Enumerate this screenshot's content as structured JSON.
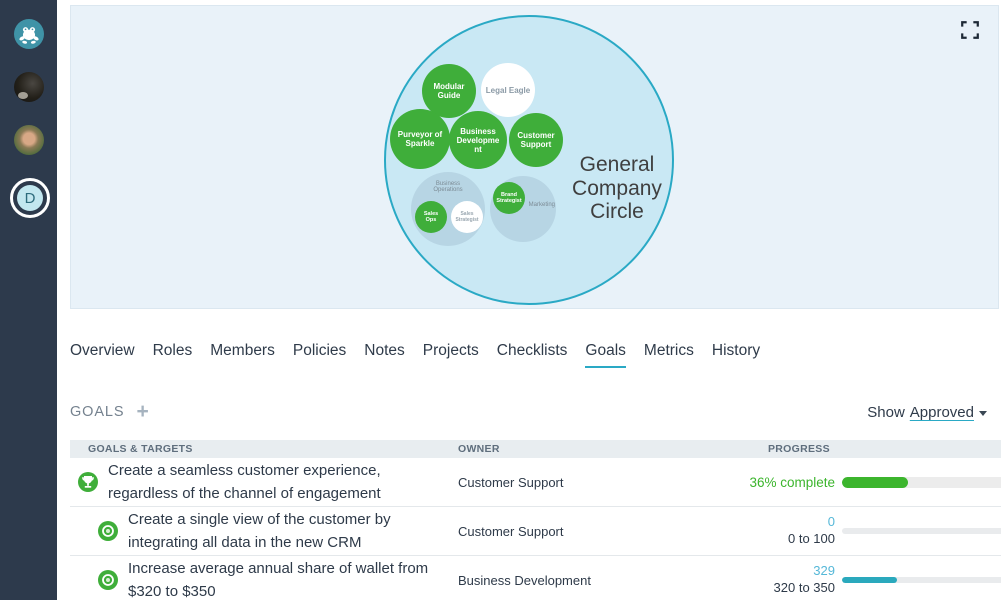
{
  "sidebar": {
    "profile_initial": "D"
  },
  "colors": {
    "accent_teal": "#2aa9c5",
    "role_green": "#3fae3a",
    "progress_green": "#3cb52d",
    "progress_teal": "#2aa9bd",
    "value_blue": "#56b8d8",
    "sidebar_bg": "#2d3a4c"
  },
  "circle_map": {
    "title": "General Company Circle",
    "circles": {
      "modular_guide": "Modular Guide",
      "legal_eagle": "Legal Eagle",
      "purveyor_of_sparkle": "Purveyor of Sparkle",
      "business_development": "Business Development",
      "customer_support": "Customer Support",
      "business_operations": "Business Operations",
      "sales_ops": "Sales Ops",
      "sales_strategist": "Sales Strategist",
      "marketing": "Marketing",
      "brand_strategist": "Brand Strategist"
    }
  },
  "tabs": {
    "items": [
      "Overview",
      "Roles",
      "Members",
      "Policies",
      "Notes",
      "Projects",
      "Checklists",
      "Goals",
      "Metrics",
      "History"
    ],
    "active": "Goals"
  },
  "goals": {
    "heading": "GOALS",
    "add_button": "+",
    "filter_label": "Show",
    "filter_value": "Approved",
    "table": {
      "columns": [
        "GOALS & TARGETS",
        "OWNER",
        "PROGRESS"
      ],
      "rows": [
        {
          "icon": "trophy-icon",
          "text": "Create a seamless customer experience, regardless of the channel of engagement",
          "owner": "Customer Support",
          "progress_text": "36% complete",
          "progress_percent": 36,
          "bar_color": "#3cb52d"
        },
        {
          "icon": "target-icon",
          "text": "Create a single view of the customer by integrating all data in the new CRM",
          "owner": "Customer Support",
          "value": "0",
          "range": "0 to 100",
          "progress_percent": 0,
          "bar_color": "#2aa9bd"
        },
        {
          "icon": "target-icon",
          "text": "Increase average annual share of wallet from $320 to $350",
          "owner": "Business Development",
          "value": "329",
          "range": "320 to 350",
          "progress_percent": 30,
          "bar_color": "#2aa9bd"
        }
      ]
    }
  }
}
